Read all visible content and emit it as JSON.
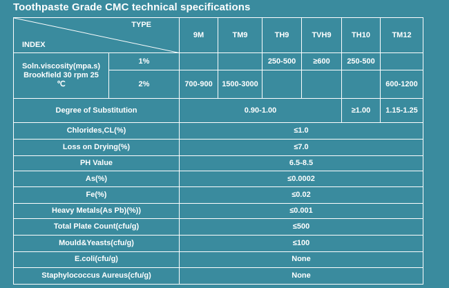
{
  "title": "Toothpaste Grade CMC technical specifications",
  "header": {
    "type_label": "TYPE",
    "index_label": "INDEX",
    "columns": [
      "9M",
      "TM9",
      "TH9",
      "TVH9",
      "TH10",
      "TM12"
    ]
  },
  "viscosity": {
    "label_line1": "Soln.viscosity(mpa.s)",
    "label_line2": "Brookfield 30 rpm 25",
    "label_line3": "℃",
    "rows": [
      {
        "concentration": "1%",
        "values": [
          "",
          "",
          "250-500",
          "≥600",
          "250-500",
          ""
        ]
      },
      {
        "concentration": "2%",
        "values": [
          "700-900",
          "1500-3000",
          "",
          "",
          "",
          "600-1200"
        ]
      }
    ]
  },
  "substitution": {
    "label": "Degree of Substitution",
    "common_value": "0.90-1.00",
    "th10_value": "≥1.00",
    "tm12_value": "1.15-1.25"
  },
  "specs": [
    {
      "label": "Chlorides,CL(%)",
      "value": "≤1.0"
    },
    {
      "label": "Loss on Drying(%)",
      "value": "≤7.0"
    },
    {
      "label": "PH Value",
      "value": "6.5-8.5"
    },
    {
      "label": "As(%)",
      "value": "≤0.0002"
    },
    {
      "label": "Fe(%)",
      "value": "≤0.02"
    },
    {
      "label": "Heavy Metals(As Pb)(%))",
      "value": "≤0.001"
    },
    {
      "label": "Total Plate Count(cfu/g)",
      "value": "≤500"
    },
    {
      "label": "Mould&Yeasts(cfu/g)",
      "value": "≤100"
    },
    {
      "label": "E.coli(cfu/g)",
      "value": "None"
    },
    {
      "label": "Staphylococcus Aureus(cfu/g)",
      "value": "None"
    }
  ]
}
